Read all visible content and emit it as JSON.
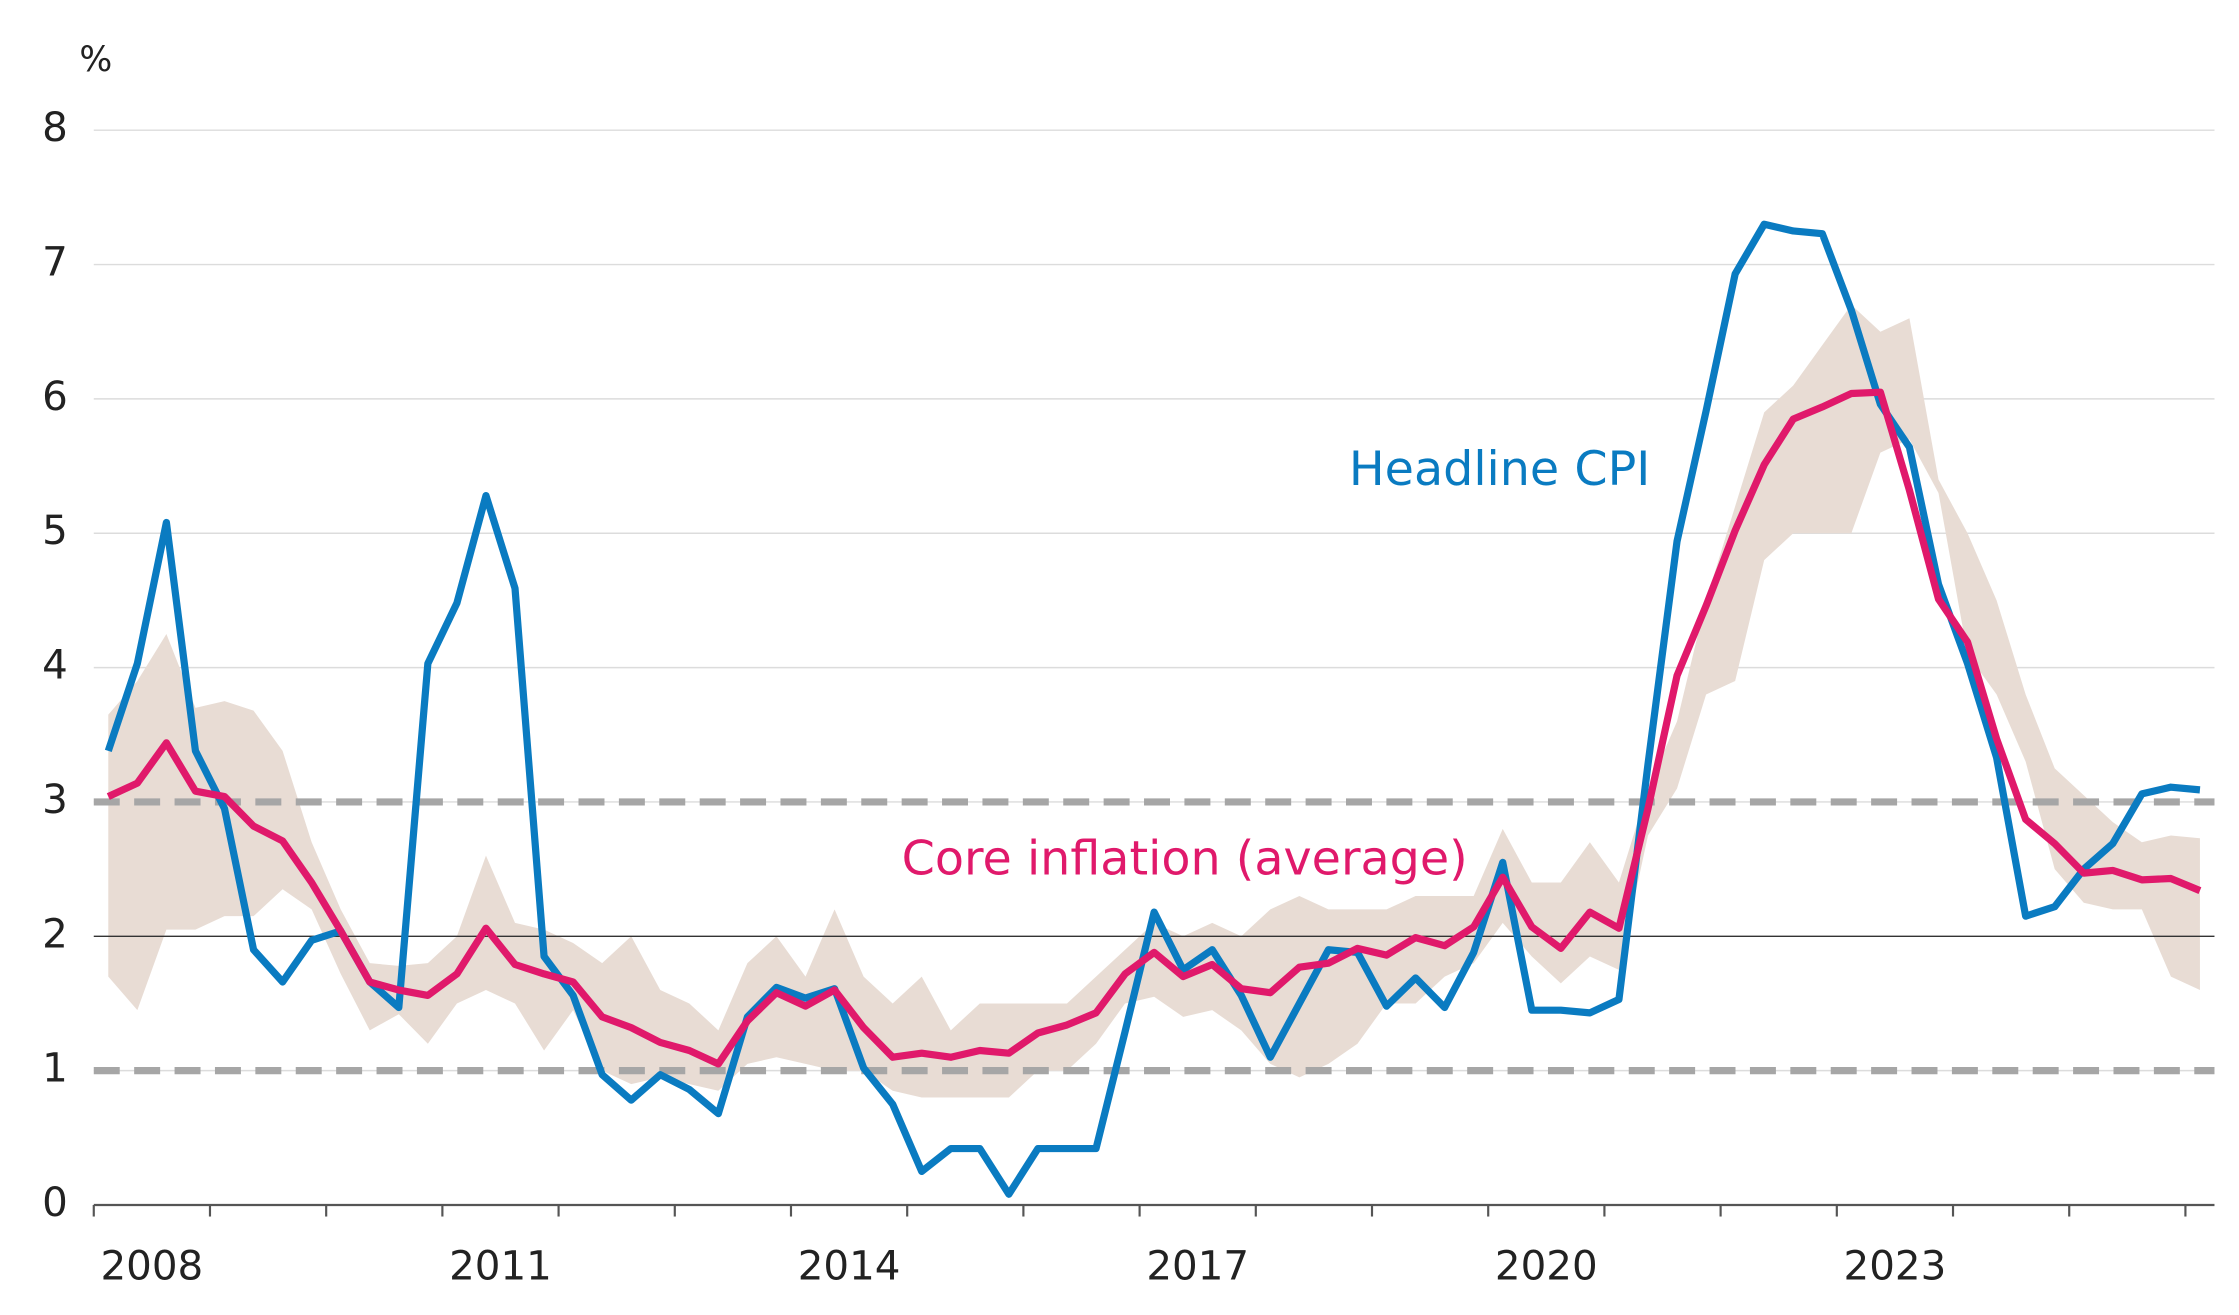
{
  "chart_data": {
    "type": "line",
    "ylabel": "%",
    "xlim": [
      2008,
      2026.25
    ],
    "ylim": [
      0,
      8
    ],
    "yticks": [
      0,
      1,
      2,
      3,
      4,
      5,
      6,
      7,
      8
    ],
    "xticks": [
      2008,
      2009,
      2010,
      2011,
      2012,
      2013,
      2014,
      2015,
      2016,
      2017,
      2018,
      2019,
      2020,
      2021,
      2022,
      2023,
      2024,
      2025,
      2026
    ],
    "xlabels": [
      2008,
      2011,
      2014,
      2017,
      2020,
      2023
    ],
    "grid": true,
    "reference_lines": {
      "dashed": [
        1,
        3
      ],
      "solid": [
        2
      ]
    },
    "x": [
      2008.125,
      2008.375,
      2008.625,
      2008.875,
      2009.125,
      2009.375,
      2009.625,
      2009.875,
      2010.125,
      2010.375,
      2010.625,
      2010.875,
      2011.125,
      2011.375,
      2011.625,
      2011.875,
      2012.125,
      2012.375,
      2012.625,
      2012.875,
      2013.125,
      2013.375,
      2013.625,
      2013.875,
      2014.125,
      2014.375,
      2014.625,
      2014.875,
      2015.125,
      2015.375,
      2015.625,
      2015.875,
      2016.125,
      2016.375,
      2016.625,
      2016.875,
      2017.125,
      2017.375,
      2017.625,
      2017.875,
      2018.125,
      2018.375,
      2018.625,
      2018.875,
      2019.125,
      2019.375,
      2019.625,
      2019.875,
      2020.125,
      2020.375,
      2020.625,
      2020.875,
      2021.125,
      2021.375,
      2021.625,
      2021.875,
      2022.125,
      2022.375,
      2022.625,
      2022.875,
      2023.125,
      2023.375,
      2023.625,
      2023.875,
      2024.125,
      2024.375,
      2024.625,
      2024.875,
      2025.125,
      2025.375,
      2025.625,
      2025.875,
      2026.125
    ],
    "band": {
      "color": "#e8dcd4",
      "upper": [
        3.65,
        3.9,
        4.25,
        3.7,
        3.75,
        3.68,
        3.38,
        2.7,
        2.2,
        1.8,
        1.78,
        1.8,
        2.0,
        2.6,
        2.1,
        2.05,
        1.95,
        1.8,
        2.0,
        1.6,
        1.5,
        1.3,
        1.8,
        2.0,
        1.7,
        2.2,
        1.7,
        1.5,
        1.7,
        1.3,
        1.5,
        1.5,
        1.5,
        1.5,
        1.7,
        1.9,
        2.1,
        2.0,
        2.1,
        2.0,
        2.2,
        2.3,
        2.2,
        2.2,
        2.2,
        2.3,
        2.3,
        2.3,
        2.8,
        2.4,
        2.4,
        2.7,
        2.4,
        3.1,
        3.6,
        4.5,
        5.2,
        5.9,
        6.1,
        6.4,
        6.7,
        6.5,
        6.6,
        5.4,
        5.0,
        4.5,
        3.8,
        3.25,
        3.05,
        2.85,
        2.7,
        2.75,
        2.73
      ],
      "lower": [
        1.7,
        1.45,
        2.05,
        2.05,
        2.15,
        2.15,
        2.35,
        2.2,
        1.72,
        1.3,
        1.42,
        1.2,
        1.5,
        1.6,
        1.5,
        1.15,
        1.45,
        1.0,
        0.9,
        0.95,
        0.9,
        0.85,
        1.05,
        1.1,
        1.05,
        1.0,
        1.0,
        0.85,
        0.8,
        0.8,
        0.8,
        0.8,
        1.0,
        1.0,
        1.2,
        1.5,
        1.55,
        1.4,
        1.45,
        1.3,
        1.05,
        0.95,
        1.05,
        1.2,
        1.5,
        1.5,
        1.7,
        1.8,
        2.1,
        1.85,
        1.65,
        1.85,
        1.75,
        2.75,
        3.1,
        3.8,
        3.9,
        4.8,
        5.0,
        5.0,
        5.0,
        5.6,
        5.7,
        5.3,
        4.1,
        3.8,
        3.3,
        2.5,
        2.25,
        2.2,
        2.2,
        1.7,
        1.6
      ]
    },
    "series": [
      {
        "name": "Headline CPI",
        "color": "#0a7bc1",
        "values": [
          3.38,
          4.03,
          5.08,
          3.38,
          2.95,
          1.9,
          1.66,
          1.97,
          2.04,
          1.66,
          1.47,
          4.03,
          4.48,
          5.28,
          4.59,
          1.85,
          1.56,
          0.97,
          0.78,
          0.97,
          0.86,
          0.68,
          1.4,
          1.62,
          1.54,
          1.61,
          1.02,
          0.75,
          0.25,
          0.42,
          0.42,
          0.08,
          0.42,
          0.42,
          0.42,
          1.29,
          2.18,
          1.75,
          1.9,
          1.56,
          1.1,
          1.5,
          1.9,
          1.88,
          1.48,
          1.69,
          1.47,
          1.88,
          2.55,
          1.45,
          1.45,
          1.43,
          1.53,
          3.28,
          4.94,
          5.91,
          6.93,
          7.3,
          7.25,
          7.23,
          6.66,
          5.96,
          5.64,
          4.62,
          4.03,
          3.33,
          2.15,
          2.22,
          2.5,
          2.69,
          3.06,
          3.11,
          3.09
        ]
      },
      {
        "name": "Core inflation (average)",
        "color": "#e0196b",
        "values": [
          3.04,
          3.14,
          3.44,
          3.08,
          3.04,
          2.82,
          2.71,
          2.4,
          2.04,
          1.66,
          1.6,
          1.56,
          1.72,
          2.06,
          1.79,
          1.72,
          1.66,
          1.4,
          1.32,
          1.21,
          1.15,
          1.05,
          1.37,
          1.58,
          1.48,
          1.6,
          1.32,
          1.1,
          1.13,
          1.1,
          1.15,
          1.13,
          1.28,
          1.34,
          1.43,
          1.72,
          1.88,
          1.7,
          1.79,
          1.61,
          1.58,
          1.77,
          1.8,
          1.91,
          1.86,
          1.99,
          1.93,
          2.07,
          2.44,
          2.07,
          1.91,
          2.18,
          2.06,
          2.95,
          3.94,
          4.46,
          5.02,
          5.51,
          5.85,
          5.94,
          6.04,
          6.05,
          5.32,
          4.51,
          4.19,
          3.47,
          2.87,
          2.69,
          2.47,
          2.49,
          2.42,
          2.43,
          2.34
        ]
      }
    ]
  }
}
